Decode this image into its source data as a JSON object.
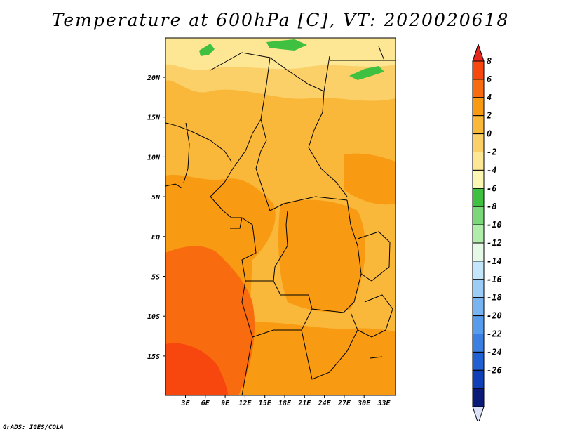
{
  "title": "Temperature at 600hPa [C], VT: 2020020618",
  "credit": "GrADS: IGES/COLA",
  "lat_labels": [
    "20N",
    "15N",
    "10N",
    "5N",
    "EQ",
    "5S",
    "10S",
    "15S"
  ],
  "lon_labels": [
    "3E",
    "6E",
    "9E",
    "12E",
    "15E",
    "18E",
    "21E",
    "24E",
    "27E",
    "30E",
    "33E"
  ],
  "colorbar": {
    "labels": [
      "8",
      "6",
      "4",
      "2",
      "0",
      "-2",
      "-4",
      "-6",
      "-8",
      "-10",
      "-12",
      "-14",
      "-16",
      "-18",
      "-20",
      "-22",
      "-24",
      "-26"
    ],
    "colors": [
      "#e7261e",
      "#f8460f",
      "#f86c0f",
      "#f89a12",
      "#f9b839",
      "#fbd068",
      "#fde794",
      "#fcf7b2",
      "#40c040",
      "#7ad87a",
      "#b0ecaa",
      "#e6f9e6",
      "#c4e6fa",
      "#9ccdf6",
      "#78b4f2",
      "#579bec",
      "#3b7fe2",
      "#2160d2",
      "#1040b8",
      "#0a1a78",
      "#dce2fa"
    ]
  },
  "map": {
    "region_lon": [
      0,
      35
    ],
    "region_lat": [
      -20,
      24
    ],
    "variable": "Temperature at 600hPa",
    "units": "C"
  }
}
